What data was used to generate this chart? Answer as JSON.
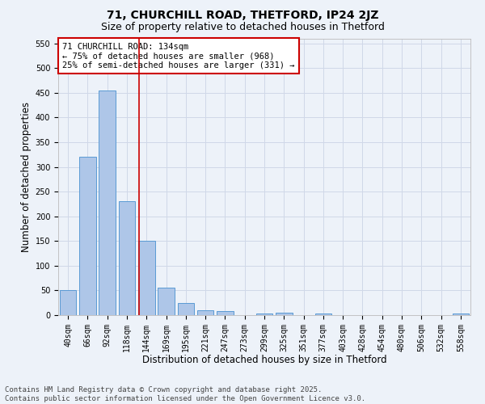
{
  "title1": "71, CHURCHILL ROAD, THETFORD, IP24 2JZ",
  "title2": "Size of property relative to detached houses in Thetford",
  "xlabel": "Distribution of detached houses by size in Thetford",
  "ylabel": "Number of detached properties",
  "categories": [
    "40sqm",
    "66sqm",
    "92sqm",
    "118sqm",
    "144sqm",
    "169sqm",
    "195sqm",
    "221sqm",
    "247sqm",
    "273sqm",
    "299sqm",
    "325sqm",
    "351sqm",
    "377sqm",
    "403sqm",
    "428sqm",
    "454sqm",
    "480sqm",
    "506sqm",
    "532sqm",
    "558sqm"
  ],
  "values": [
    50,
    320,
    455,
    230,
    150,
    55,
    25,
    10,
    8,
    0,
    4,
    5,
    0,
    4,
    0,
    0,
    0,
    0,
    0,
    0,
    3
  ],
  "bar_color": "#aec6e8",
  "bar_edge_color": "#5a9ad4",
  "grid_color": "#d0d8e8",
  "background_color": "#edf2f9",
  "vline_x": 3.62,
  "vline_color": "#cc0000",
  "ylim": [
    0,
    560
  ],
  "yticks": [
    0,
    50,
    100,
    150,
    200,
    250,
    300,
    350,
    400,
    450,
    500,
    550
  ],
  "annotation_title": "71 CHURCHILL ROAD: 134sqm",
  "annotation_line1": "← 75% of detached houses are smaller (968)",
  "annotation_line2": "25% of semi-detached houses are larger (331) →",
  "annotation_box_color": "#ffffff",
  "annotation_box_edge": "#cc0000",
  "footer1": "Contains HM Land Registry data © Crown copyright and database right 2025.",
  "footer2": "Contains public sector information licensed under the Open Government Licence v3.0.",
  "title1_fontsize": 10,
  "title2_fontsize": 9,
  "xlabel_fontsize": 8.5,
  "ylabel_fontsize": 8.5,
  "tick_fontsize": 7,
  "annotation_fontsize": 7.5,
  "footer_fontsize": 6.5
}
